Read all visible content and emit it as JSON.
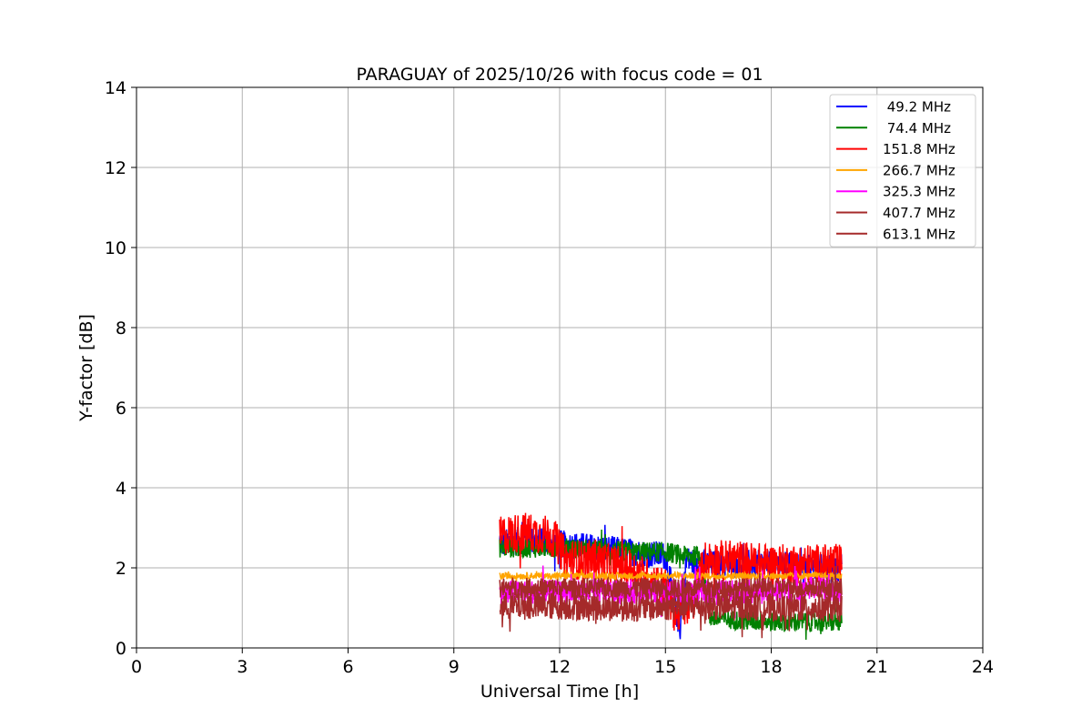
{
  "chart_data": {
    "type": "line",
    "title": "PARAGUAY of 2025/10/26 with focus code = 01",
    "xlabel": "Universal Time [h]",
    "ylabel": "Y-factor [dB]",
    "xlim": [
      0,
      24
    ],
    "ylim": [
      0,
      14
    ],
    "xticks": [
      0,
      3,
      6,
      9,
      12,
      15,
      18,
      21,
      24
    ],
    "yticks": [
      0,
      2,
      4,
      6,
      8,
      10,
      12,
      14
    ],
    "grid": true,
    "legend_position": "top-right",
    "series": [
      {
        "name": " 49.2 MHz",
        "color": "#0000ff",
        "x": [
          10.3,
          11,
          12,
          13,
          14,
          15,
          15.4,
          15.6,
          16,
          17,
          18,
          19,
          20
        ],
        "y": [
          2.6,
          2.7,
          2.6,
          2.5,
          2.4,
          2.3,
          0.5,
          2.2,
          2.1,
          2.1,
          2.1,
          2.0,
          2.0
        ],
        "noise": 0.35
      },
      {
        "name": " 74.4 MHz",
        "color": "#008000",
        "x": [
          10.3,
          12,
          14,
          15,
          15.5,
          16,
          16.3,
          17,
          18,
          19,
          20
        ],
        "y": [
          2.5,
          2.5,
          2.4,
          2.4,
          2.3,
          2.3,
          0.75,
          0.7,
          0.65,
          0.65,
          0.65
        ],
        "noise": 0.25
      },
      {
        "name": "151.8 MHz",
        "color": "#ff0000",
        "x": [
          10.3,
          11,
          11.8,
          12.2,
          13,
          14,
          15,
          15.3,
          15.8,
          16.1,
          17,
          18,
          19,
          20
        ],
        "y": [
          2.8,
          2.9,
          2.8,
          2.2,
          2.2,
          2.0,
          1.5,
          0.8,
          1.2,
          2.2,
          2.2,
          2.1,
          2.1,
          2.1
        ],
        "noise": 0.5
      },
      {
        "name": "266.7 MHz",
        "color": "#ffa500",
        "x": [
          10.3,
          12,
          14,
          16,
          18,
          20
        ],
        "y": [
          1.8,
          1.8,
          1.8,
          1.8,
          1.8,
          1.8
        ],
        "noise": 0.08
      },
      {
        "name": "325.3 MHz",
        "color": "#ff00ff",
        "x": [
          10.3,
          12,
          14,
          16,
          18,
          19.2,
          20
        ],
        "y": [
          1.4,
          1.4,
          1.4,
          1.4,
          1.4,
          1.5,
          1.4
        ],
        "noise": 0.3
      },
      {
        "name": "407.7 MHz",
        "color": "#a52a2a",
        "x": [
          10.3,
          12,
          14,
          16,
          18,
          20
        ],
        "y": [
          1.5,
          1.5,
          1.5,
          1.5,
          1.5,
          1.5
        ],
        "noise": 0.25
      },
      {
        "name": "613.1 MHz",
        "color": "#a52a2a",
        "x": [
          10.3,
          12,
          14,
          16,
          18,
          20
        ],
        "y": [
          1.05,
          1.05,
          1.0,
          1.05,
          1.0,
          1.0
        ],
        "noise": 0.35
      }
    ]
  }
}
